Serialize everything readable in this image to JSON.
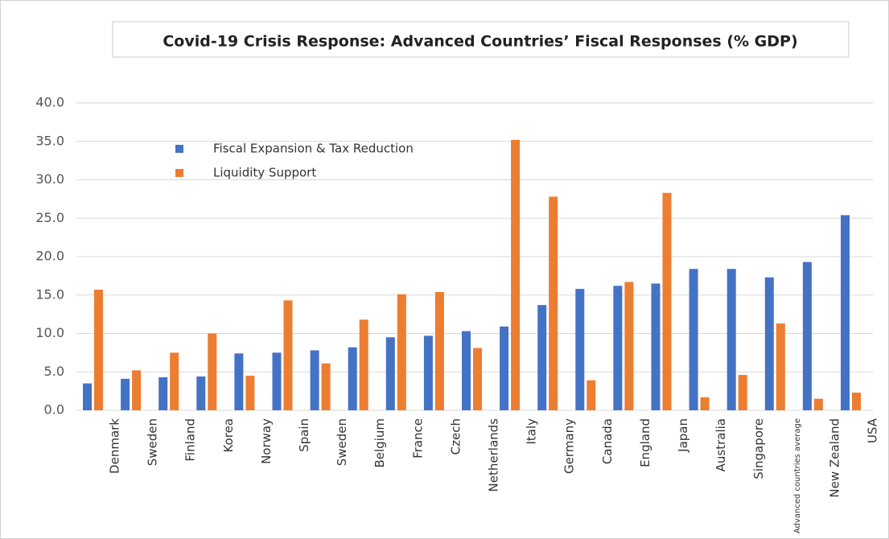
{
  "chart_data": {
    "type": "bar",
    "title": "Covid-19 Crisis Response: Advanced Countries’ Fiscal Responses (% GDP)",
    "categories": [
      "Denmark",
      "Sweden",
      "Finland",
      "Korea",
      "Norway",
      "Spain",
      "Sweden",
      "Belgium",
      "France",
      "Czech",
      "Netherlands",
      "Italy",
      "Germany",
      "Canada",
      "England",
      "Japan",
      "Australia",
      "Singapore",
      "Advanced countries average",
      "New Zealand",
      "USA"
    ],
    "series": [
      {
        "name": "Fiscal Expansion & Tax Reduction",
        "color": "#4472c4",
        "values": [
          3.5,
          4.1,
          4.3,
          4.4,
          7.4,
          7.5,
          7.8,
          8.2,
          9.5,
          9.7,
          10.3,
          10.9,
          13.7,
          15.8,
          16.2,
          16.5,
          18.4,
          18.4,
          17.3,
          19.3,
          25.4
        ]
      },
      {
        "name": "Liquidity Support",
        "color": "#ed7d31",
        "values": [
          15.7,
          5.2,
          7.5,
          10.0,
          4.5,
          14.3,
          6.1,
          11.8,
          15.1,
          15.4,
          8.1,
          35.2,
          27.8,
          3.9,
          16.7,
          28.3,
          1.7,
          4.6,
          11.3,
          1.5,
          2.3
        ]
      }
    ],
    "ylim": [
      0,
      40
    ],
    "yticks": [
      {
        "value": 0,
        "label": "0.0"
      },
      {
        "value": 5,
        "label": "5.0"
      },
      {
        "value": 10,
        "label": "10.0"
      },
      {
        "value": 15,
        "label": "15.0"
      },
      {
        "value": 20,
        "label": "20.0"
      },
      {
        "value": 25,
        "label": "25.0"
      },
      {
        "value": 30,
        "label": "30.0"
      },
      {
        "value": 35,
        "label": "35.0"
      },
      {
        "value": 40,
        "label": "40.0"
      }
    ],
    "grid": true,
    "legend": "upper left"
  }
}
